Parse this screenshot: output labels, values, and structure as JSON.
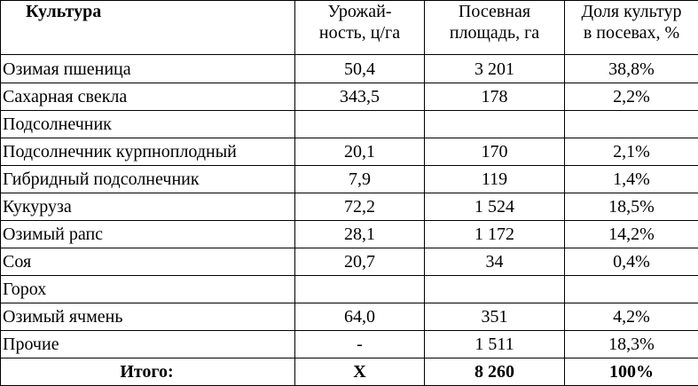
{
  "table": {
    "headers": {
      "culture": "Культура",
      "yield_line1": "Урожай-",
      "yield_line2": "ность, ц/га",
      "area_line1": "Посевная",
      "area_line2": "площадь, га",
      "share_line1": "Доля культур",
      "share_line2": "в посевах, %"
    },
    "rows": [
      {
        "name": "Озимая пшеница",
        "yield": "50,4",
        "area": "3 201",
        "share": "38,8%"
      },
      {
        "name": "Сахарная свекла",
        "yield": "343,5",
        "area": "178",
        "share": "2,2%"
      },
      {
        "name": "Подсолнечник",
        "yield": "",
        "area": "",
        "share": ""
      },
      {
        "name": "Подсолнечник курпноплодный",
        "yield": "20,1",
        "area": "170",
        "share": "2,1%"
      },
      {
        "name": "Гибридный подсолнечник",
        "yield": "7,9",
        "area": "119",
        "share": "1,4%"
      },
      {
        "name": "Кукуруза",
        "yield": "72,2",
        "area": "1 524",
        "share": "18,5%"
      },
      {
        "name": "Озимый рапс",
        "yield": "28,1",
        "area": "1 172",
        "share": "14,2%"
      },
      {
        "name": "Соя",
        "yield": "20,7",
        "area": "34",
        "share": "0,4%"
      },
      {
        "name": "Горох",
        "yield": "",
        "area": "",
        "share": ""
      },
      {
        "name": "Озимый ячмень",
        "yield": "64,0",
        "area": "351",
        "share": "4,2%"
      },
      {
        "name": "Прочие",
        "yield": "-",
        "area": "1 511",
        "share": "18,3%"
      }
    ],
    "total": {
      "name": "Итого:",
      "yield": "Х",
      "area": "8 260",
      "share": "100%"
    }
  }
}
